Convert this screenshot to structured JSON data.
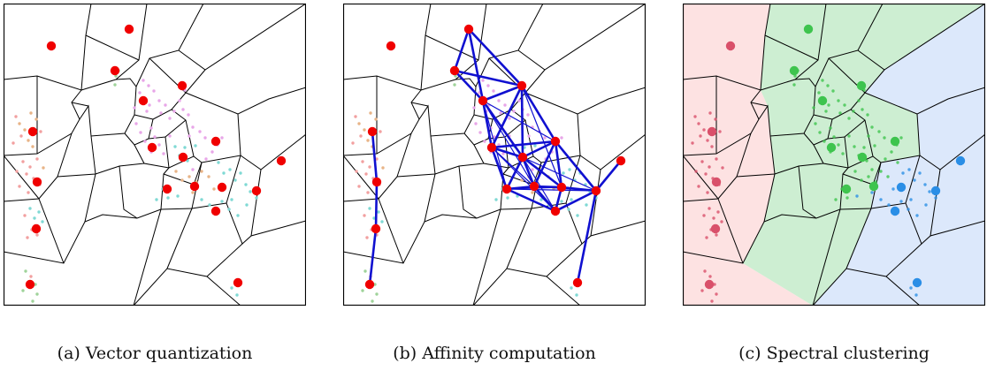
{
  "captions": {
    "a": "(a) Vector quantization",
    "b": "(b) Affinity computation",
    "c": "(c) Spectral clustering"
  },
  "colors": {
    "centroid": "#f00000",
    "affinity_edge": "#1010d0",
    "cell_border": "#000000",
    "cluster_red_fill": "#fde2e2",
    "cluster_green_fill": "#cdeed2",
    "cluster_blue_fill": "#dce8fb",
    "cluster_red_point": "#d9506a",
    "cluster_green_point": "#3ec44e",
    "cluster_blue_point": "#2a8ee6",
    "sample_colors": [
      "#f2a0a0",
      "#e8b487",
      "#7fd9d4",
      "#e8a6e8",
      "#9fd39a"
    ]
  }
}
